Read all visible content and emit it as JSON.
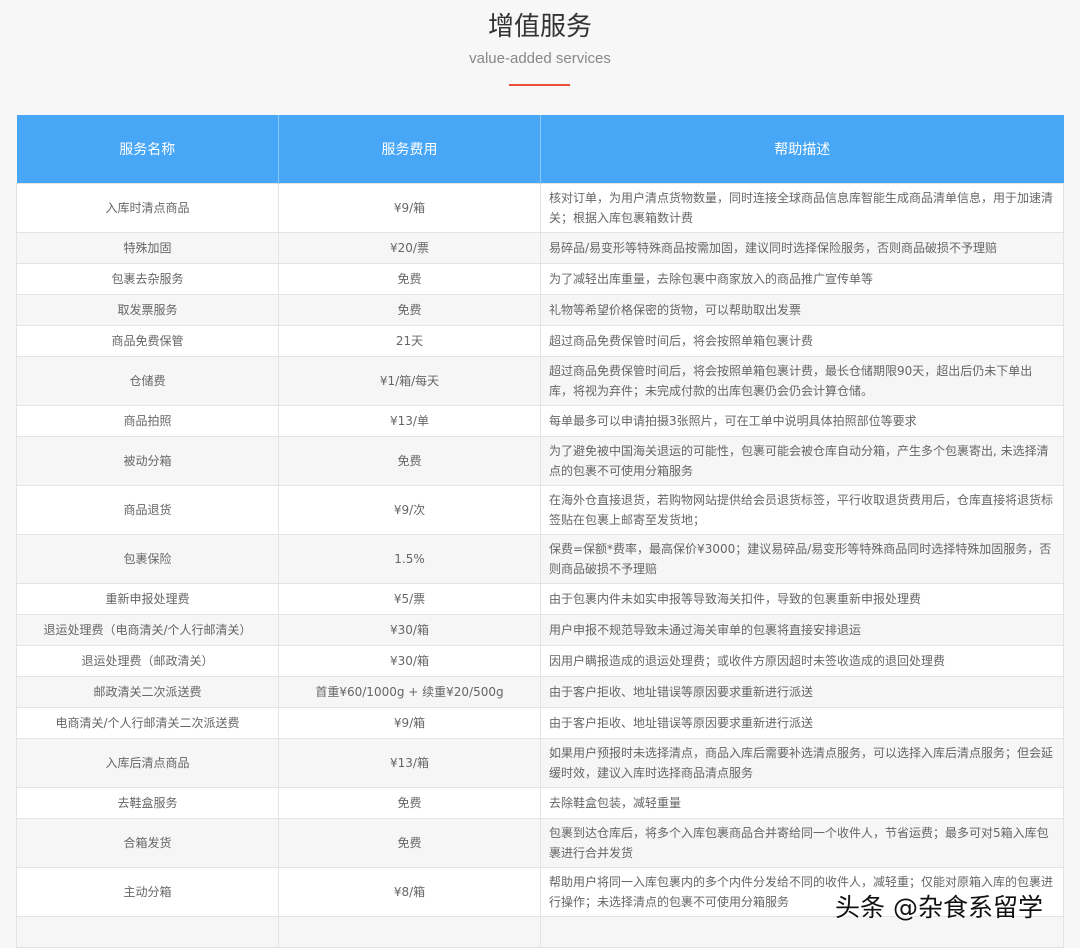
{
  "header": {
    "title": "增值服务",
    "subtitle": "value-added services",
    "accent": "#e8503a"
  },
  "table": {
    "columns": [
      "服务名称",
      "服务费用",
      "帮助描述"
    ],
    "header_color": "#47a6f5",
    "rows": [
      {
        "name": "入库时清点商品",
        "fee": "¥9/箱",
        "desc": "核对订单，为用户清点货物数量，同时连接全球商品信息库智能生成商品清单信息，用于加速清关；根据入库包裹箱数计费",
        "lines": 2
      },
      {
        "name": "特殊加固",
        "fee": "¥20/票",
        "desc": "易碎品/易变形等特殊商品按需加固，建议同时选择保险服务，否则商品破损不予理赔",
        "lines": 1
      },
      {
        "name": "包裹去杂服务",
        "fee": "免费",
        "desc": "为了减轻出库重量，去除包裹中商家放入的商品推广宣传单等",
        "lines": 1
      },
      {
        "name": "取发票服务",
        "fee": "免费",
        "desc": "礼物等希望价格保密的货物，可以帮助取出发票",
        "lines": 1
      },
      {
        "name": "商品免费保管",
        "fee": "21天",
        "desc": "超过商品免费保管时间后，将会按照单箱包裹计费",
        "lines": 1
      },
      {
        "name": "仓储费",
        "fee": "¥1/箱/每天",
        "desc": "超过商品免费保管时间后，将会按照单箱包裹计费，最长仓储期限90天，超出后仍未下单出库，将视为弃件；未完成付款的出库包裹仍会仍会计算仓储。",
        "lines": 2
      },
      {
        "name": "商品拍照",
        "fee": "¥13/单",
        "desc": "每单最多可以申请拍摄3张照片，可在工单中说明具体拍照部位等要求",
        "lines": 1
      },
      {
        "name": "被动分箱",
        "fee": "免费",
        "desc": "为了避免被中国海关退运的可能性，包裹可能会被仓库自动分箱，产生多个包裹寄出, 未选择清点的包裹不可使用分箱服务",
        "lines": 2
      },
      {
        "name": "商品退货",
        "fee": "¥9/次",
        "desc": "在海外仓直接退货，若购物网站提供给会员退货标签，平行收取退货费用后，仓库直接将退货标签贴在包裹上邮寄至发货地；",
        "lines": 2
      },
      {
        "name": "包裹保险",
        "fee": "1.5%",
        "desc": "保费=保额*费率，最高保价¥3000；建议易碎品/易变形等特殊商品同时选择特殊加固服务，否则商品破损不予理赔",
        "lines": 2
      },
      {
        "name": "重新申报处理费",
        "fee": "¥5/票",
        "desc": "由于包裹内件未如实申报等导致海关扣件，导致的包裹重新申报处理费",
        "lines": 1
      },
      {
        "name": "退运处理费（电商清关/个人行邮清关）",
        "fee": "¥30/箱",
        "desc": "用户申报不规范导致未通过海关审单的包裹将直接安排退运",
        "lines": 1
      },
      {
        "name": "退运处理费（邮政清关）",
        "fee": "¥30/箱",
        "desc": "因用户瞒报造成的退运处理费；或收件方原因超时未签收造成的退回处理费",
        "lines": 1
      },
      {
        "name": "邮政清关二次派送费",
        "fee": "首重¥60/1000g + 续重¥20/500g",
        "desc": "由于客户拒收、地址错误等原因要求重新进行派送",
        "lines": 1
      },
      {
        "name": "电商清关/个人行邮清关二次派送费",
        "fee": "¥9/箱",
        "desc": "由于客户拒收、地址错误等原因要求重新进行派送",
        "lines": 1
      },
      {
        "name": "入库后清点商品",
        "fee": "¥13/箱",
        "desc": "如果用户预报时未选择清点，商品入库后需要补选清点服务，可以选择入库后清点服务；但会延缓时效，建议入库时选择商品清点服务",
        "lines": 2
      },
      {
        "name": "去鞋盒服务",
        "fee": "免费",
        "desc": "去除鞋盒包装，减轻重量",
        "lines": 1
      },
      {
        "name": "合箱发货",
        "fee": "免费",
        "desc": "包裹到达仓库后，将多个入库包裹商品合并寄给同一个收件人，节省运费；最多可对5箱入库包裹进行合并发货",
        "lines": 2
      },
      {
        "name": "主动分箱",
        "fee": "¥8/箱",
        "desc": "帮助用户将同一入库包裹内的多个内件分发给不同的收件人，减轻重；仅能对原箱入库的包裹进行操作；未选择清点的包裹不可使用分箱服务",
        "lines": 2
      },
      {
        "name": "",
        "fee": "",
        "desc": "",
        "lines": 1
      }
    ]
  },
  "watermark": "头条 @杂食系留学"
}
